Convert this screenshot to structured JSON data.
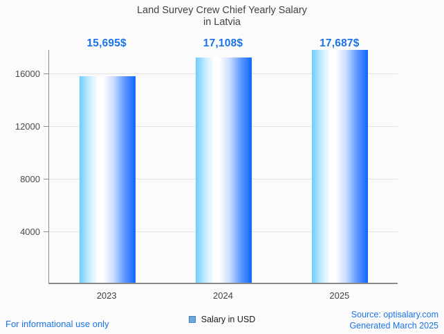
{
  "title": {
    "line1": "Land Survey Crew Chief Yearly Salary",
    "line2": "in Latvia"
  },
  "chart_data": {
    "type": "bar",
    "title": "Land Survey Crew Chief Yearly Salary in Latvia",
    "categories": [
      "2023",
      "2024",
      "2025"
    ],
    "values": [
      15695,
      17108,
      17687
    ],
    "value_labels": [
      "15,695$",
      "17,108$",
      "17,687$"
    ],
    "xlabel": "",
    "ylabel": "",
    "y_ticks": [
      4000,
      8000,
      12000,
      16000
    ],
    "ylim": [
      0,
      17800
    ],
    "grid": true,
    "legend": {
      "label": "Salary in USD",
      "position": "bottom",
      "swatch_fill": "#6fa8dc",
      "swatch_border": "#3d85c6"
    },
    "colors": {
      "bar_gradient_left": "#6fccff",
      "bar_gradient_mid": "#ffffff",
      "bar_gradient_right": "#0d66ff",
      "value_label": "#1a73e8",
      "axis": "#8a8a8a",
      "gridline": "#e3e3e3",
      "title_text": "#424242"
    }
  },
  "footer": {
    "left_note": "For informational use only",
    "source": "Source: optisalary.com",
    "generated": "Generated March 2025"
  }
}
